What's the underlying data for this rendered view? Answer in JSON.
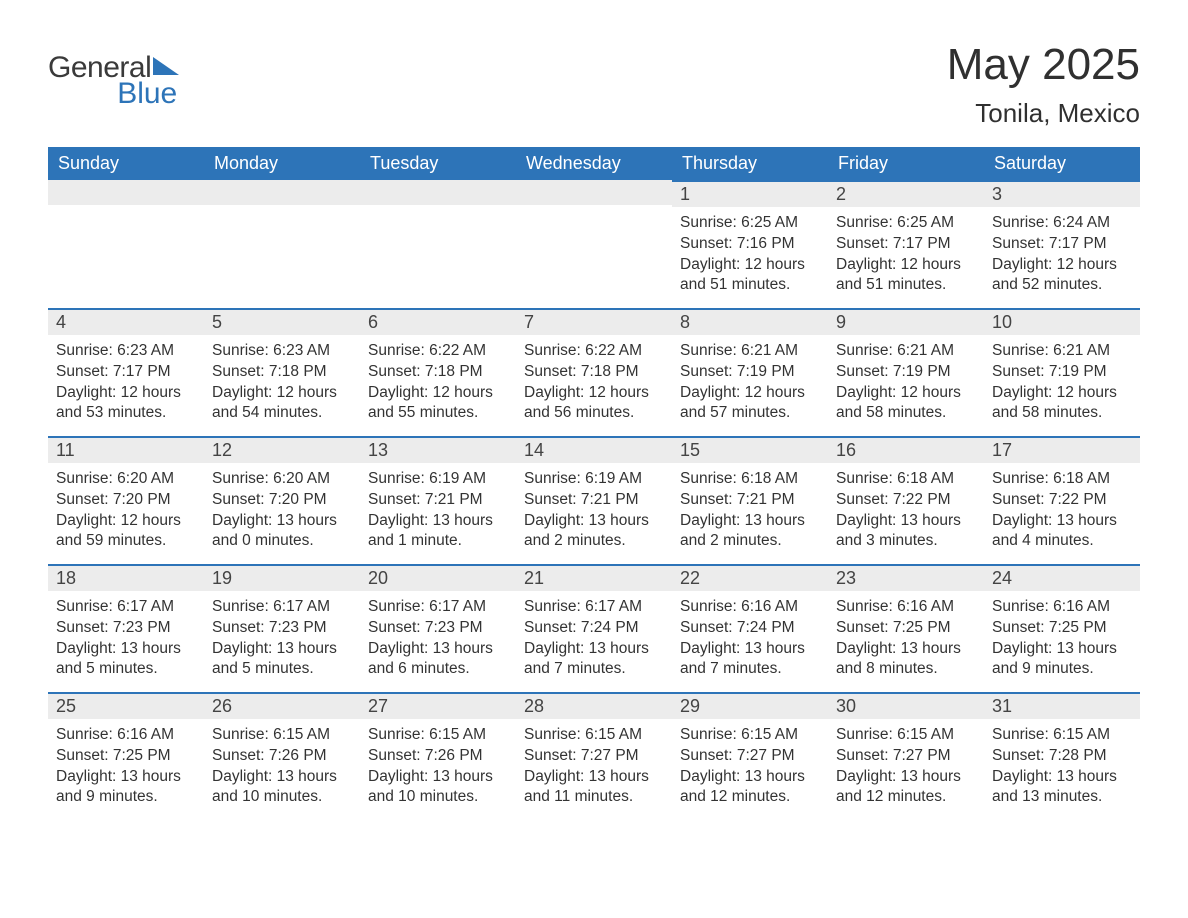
{
  "brand": {
    "general": "General",
    "blue": "Blue"
  },
  "title": {
    "month": "May 2025",
    "location": "Tonila, Mexico"
  },
  "headers": [
    "Sunday",
    "Monday",
    "Tuesday",
    "Wednesday",
    "Thursday",
    "Friday",
    "Saturday"
  ],
  "colors": {
    "accent": "#2d74b8",
    "row_alt": "#ececec",
    "text": "#333333",
    "bg": "#ffffff"
  },
  "weeks": [
    [
      null,
      null,
      null,
      null,
      {
        "n": "1",
        "sr": "6:25 AM",
        "ss": "7:16 PM",
        "dl": "12 hours and 51 minutes."
      },
      {
        "n": "2",
        "sr": "6:25 AM",
        "ss": "7:17 PM",
        "dl": "12 hours and 51 minutes."
      },
      {
        "n": "3",
        "sr": "6:24 AM",
        "ss": "7:17 PM",
        "dl": "12 hours and 52 minutes."
      }
    ],
    [
      {
        "n": "4",
        "sr": "6:23 AM",
        "ss": "7:17 PM",
        "dl": "12 hours and 53 minutes."
      },
      {
        "n": "5",
        "sr": "6:23 AM",
        "ss": "7:18 PM",
        "dl": "12 hours and 54 minutes."
      },
      {
        "n": "6",
        "sr": "6:22 AM",
        "ss": "7:18 PM",
        "dl": "12 hours and 55 minutes."
      },
      {
        "n": "7",
        "sr": "6:22 AM",
        "ss": "7:18 PM",
        "dl": "12 hours and 56 minutes."
      },
      {
        "n": "8",
        "sr": "6:21 AM",
        "ss": "7:19 PM",
        "dl": "12 hours and 57 minutes."
      },
      {
        "n": "9",
        "sr": "6:21 AM",
        "ss": "7:19 PM",
        "dl": "12 hours and 58 minutes."
      },
      {
        "n": "10",
        "sr": "6:21 AM",
        "ss": "7:19 PM",
        "dl": "12 hours and 58 minutes."
      }
    ],
    [
      {
        "n": "11",
        "sr": "6:20 AM",
        "ss": "7:20 PM",
        "dl": "12 hours and 59 minutes."
      },
      {
        "n": "12",
        "sr": "6:20 AM",
        "ss": "7:20 PM",
        "dl": "13 hours and 0 minutes."
      },
      {
        "n": "13",
        "sr": "6:19 AM",
        "ss": "7:21 PM",
        "dl": "13 hours and 1 minute."
      },
      {
        "n": "14",
        "sr": "6:19 AM",
        "ss": "7:21 PM",
        "dl": "13 hours and 2 minutes."
      },
      {
        "n": "15",
        "sr": "6:18 AM",
        "ss": "7:21 PM",
        "dl": "13 hours and 2 minutes."
      },
      {
        "n": "16",
        "sr": "6:18 AM",
        "ss": "7:22 PM",
        "dl": "13 hours and 3 minutes."
      },
      {
        "n": "17",
        "sr": "6:18 AM",
        "ss": "7:22 PM",
        "dl": "13 hours and 4 minutes."
      }
    ],
    [
      {
        "n": "18",
        "sr": "6:17 AM",
        "ss": "7:23 PM",
        "dl": "13 hours and 5 minutes."
      },
      {
        "n": "19",
        "sr": "6:17 AM",
        "ss": "7:23 PM",
        "dl": "13 hours and 5 minutes."
      },
      {
        "n": "20",
        "sr": "6:17 AM",
        "ss": "7:23 PM",
        "dl": "13 hours and 6 minutes."
      },
      {
        "n": "21",
        "sr": "6:17 AM",
        "ss": "7:24 PM",
        "dl": "13 hours and 7 minutes."
      },
      {
        "n": "22",
        "sr": "6:16 AM",
        "ss": "7:24 PM",
        "dl": "13 hours and 7 minutes."
      },
      {
        "n": "23",
        "sr": "6:16 AM",
        "ss": "7:25 PM",
        "dl": "13 hours and 8 minutes."
      },
      {
        "n": "24",
        "sr": "6:16 AM",
        "ss": "7:25 PM",
        "dl": "13 hours and 9 minutes."
      }
    ],
    [
      {
        "n": "25",
        "sr": "6:16 AM",
        "ss": "7:25 PM",
        "dl": "13 hours and 9 minutes."
      },
      {
        "n": "26",
        "sr": "6:15 AM",
        "ss": "7:26 PM",
        "dl": "13 hours and 10 minutes."
      },
      {
        "n": "27",
        "sr": "6:15 AM",
        "ss": "7:26 PM",
        "dl": "13 hours and 10 minutes."
      },
      {
        "n": "28",
        "sr": "6:15 AM",
        "ss": "7:27 PM",
        "dl": "13 hours and 11 minutes."
      },
      {
        "n": "29",
        "sr": "6:15 AM",
        "ss": "7:27 PM",
        "dl": "13 hours and 12 minutes."
      },
      {
        "n": "30",
        "sr": "6:15 AM",
        "ss": "7:27 PM",
        "dl": "13 hours and 12 minutes."
      },
      {
        "n": "31",
        "sr": "6:15 AM",
        "ss": "7:28 PM",
        "dl": "13 hours and 13 minutes."
      }
    ]
  ],
  "labels": {
    "sunrise": "Sunrise: ",
    "sunset": "Sunset: ",
    "daylight": "Daylight: "
  }
}
